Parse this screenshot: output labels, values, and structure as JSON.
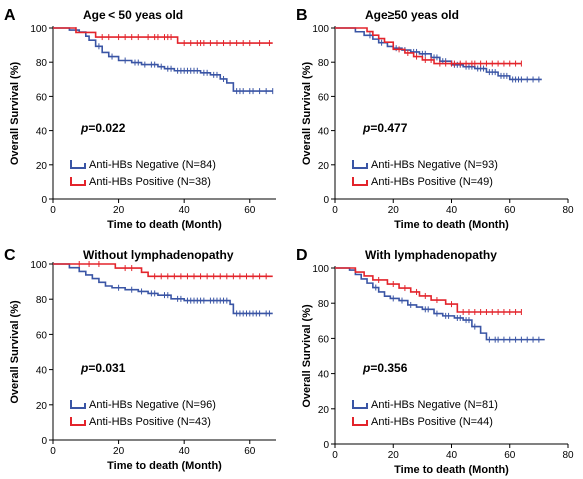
{
  "chart_data": [
    {
      "type": "line",
      "panel_letter": "A",
      "title": "Age < 50 yeas old",
      "xlabel": "Time to death (Month)",
      "ylabel": "Overall Survival (%)",
      "xlim": [
        0,
        68
      ],
      "ylim": [
        0,
        100
      ],
      "x_ticks": [
        0,
        20,
        40,
        60
      ],
      "y_ticks": [
        0,
        20,
        40,
        60,
        80,
        100
      ],
      "p_label": "p",
      "p_value": "=0.022",
      "series": [
        {
          "name": "Anti-HBs Negative (N=84)",
          "color": "#3a55a5",
          "points": [
            [
              0,
              100
            ],
            [
              4,
              100
            ],
            [
              5,
              98.8
            ],
            [
              8,
              97.6
            ],
            [
              10,
              95.2
            ],
            [
              11,
              92.9
            ],
            [
              13,
              89.3
            ],
            [
              15,
              85.7
            ],
            [
              17,
              83.3
            ],
            [
              20,
              81
            ],
            [
              24,
              79.8
            ],
            [
              27,
              78.6
            ],
            [
              32,
              77.4
            ],
            [
              34,
              76.2
            ],
            [
              37,
              75
            ],
            [
              45,
              73.8
            ],
            [
              48,
              72.6
            ],
            [
              51,
              70.2
            ],
            [
              53,
              67.9
            ],
            [
              55,
              63.1
            ],
            [
              67,
              63.1
            ]
          ],
          "censored": [
            7,
            14,
            18,
            22,
            25,
            26,
            28,
            30,
            31,
            33,
            35,
            36,
            38,
            39,
            40,
            41,
            42,
            43,
            44,
            46,
            47,
            49,
            50,
            52,
            56,
            57,
            58,
            60,
            61,
            63,
            65,
            67
          ]
        },
        {
          "name": "Anti-HBs Positive (N=38)",
          "color": "#e3242b",
          "points": [
            [
              0,
              100
            ],
            [
              6,
              100
            ],
            [
              7,
              97.4
            ],
            [
              12,
              97.4
            ],
            [
              13,
              94.7
            ],
            [
              27,
              94.7
            ],
            [
              28,
              94.7
            ],
            [
              37,
              94.7
            ],
            [
              38,
              91.2
            ],
            [
              67,
              91.2
            ]
          ],
          "censored": [
            15,
            17,
            20,
            22,
            24,
            26,
            29,
            31,
            32,
            34,
            35,
            36,
            40,
            42,
            44,
            45,
            46,
            48,
            50,
            52,
            54,
            56,
            58,
            60,
            63,
            66
          ]
        }
      ]
    },
    {
      "type": "line",
      "panel_letter": "B",
      "title": "Age≥50 yeas old",
      "xlabel": "Time to death (Month)",
      "ylabel": "Overall Survival (%)",
      "xlim": [
        0,
        80
      ],
      "ylim": [
        0,
        100
      ],
      "x_ticks": [
        0,
        20,
        40,
        60,
        80
      ],
      "y_ticks": [
        0,
        20,
        40,
        60,
        80,
        100
      ],
      "p_label": "p",
      "p_value": "=0.477",
      "series": [
        {
          "name": "Anti-HBs Negative (N=93)",
          "color": "#3a55a5",
          "points": [
            [
              0,
              100
            ],
            [
              6,
              100
            ],
            [
              7,
              97.8
            ],
            [
              10,
              95.7
            ],
            [
              13,
              93.5
            ],
            [
              15,
              91.4
            ],
            [
              18,
              89.2
            ],
            [
              20,
              88.2
            ],
            [
              23,
              87.1
            ],
            [
              26,
              86
            ],
            [
              29,
              84.9
            ],
            [
              33,
              82.8
            ],
            [
              36,
              80.6
            ],
            [
              40,
              78.5
            ],
            [
              44,
              77.4
            ],
            [
              48,
              76.3
            ],
            [
              52,
              74.2
            ],
            [
              56,
              72
            ],
            [
              60,
              69.9
            ],
            [
              71,
              69.9
            ]
          ],
          "censored": [
            12,
            16,
            21,
            24,
            27,
            28,
            30,
            31,
            34,
            35,
            37,
            38,
            41,
            42,
            43,
            45,
            46,
            47,
            49,
            50,
            51,
            53,
            54,
            55,
            57,
            58,
            59,
            61,
            62,
            63,
            64,
            66,
            68,
            70
          ]
        },
        {
          "name": "Anti-HBs Positive (N=49)",
          "color": "#e3242b",
          "points": [
            [
              0,
              100
            ],
            [
              10,
              100
            ],
            [
              11,
              97.9
            ],
            [
              13,
              95.8
            ],
            [
              15,
              93.8
            ],
            [
              17,
              91.7
            ],
            [
              20,
              87.5
            ],
            [
              24,
              85.4
            ],
            [
              27,
              83.3
            ],
            [
              30,
              81.3
            ],
            [
              34,
              79.2
            ],
            [
              64,
              79.2
            ]
          ],
          "censored": [
            22,
            25,
            28,
            31,
            33,
            36,
            38,
            40,
            41,
            43,
            45,
            47,
            48,
            50,
            52,
            54,
            56,
            58,
            60,
            62,
            64
          ]
        }
      ]
    },
    {
      "type": "line",
      "panel_letter": "C",
      "title": "Without lymphadenopathy",
      "xlabel": "Time to death (Month)",
      "ylabel": "Overall Survival (%)",
      "xlim": [
        0,
        68
      ],
      "ylim": [
        0,
        100
      ],
      "x_ticks": [
        0,
        20,
        40,
        60
      ],
      "y_ticks": [
        0,
        20,
        40,
        60,
        80,
        100
      ],
      "p_label": "p",
      "p_value": "=0.031",
      "series": [
        {
          "name": "Anti-HBs Negative (N=96)",
          "color": "#3a55a5",
          "points": [
            [
              0,
              100
            ],
            [
              5,
              97.9
            ],
            [
              8,
              95.8
            ],
            [
              10,
              93.8
            ],
            [
              12,
              91.7
            ],
            [
              14,
              89.6
            ],
            [
              16,
              87.5
            ],
            [
              18,
              86.5
            ],
            [
              22,
              85.4
            ],
            [
              26,
              84.4
            ],
            [
              29,
              83.3
            ],
            [
              32,
              82.3
            ],
            [
              36,
              80.2
            ],
            [
              40,
              79.2
            ],
            [
              47,
              79.2
            ],
            [
              54,
              77.1
            ],
            [
              55,
              71.9
            ],
            [
              67,
              71.9
            ]
          ],
          "censored": [
            20,
            24,
            27,
            30,
            31,
            34,
            35,
            38,
            39,
            41,
            42,
            43,
            44,
            45,
            46,
            48,
            49,
            50,
            51,
            52,
            53,
            56,
            57,
            58,
            59,
            60,
            61,
            62,
            63,
            65,
            66
          ]
        },
        {
          "name": "Anti-HBs Positive (N=43)",
          "color": "#e3242b",
          "points": [
            [
              0,
              100
            ],
            [
              18,
              100
            ],
            [
              19,
              97.7
            ],
            [
              26,
              97.7
            ],
            [
              27,
              95.3
            ],
            [
              29,
              93
            ],
            [
              67,
              93
            ]
          ],
          "censored": [
            8,
            11,
            14,
            22,
            24,
            31,
            33,
            35,
            37,
            39,
            41,
            43,
            45,
            47,
            49,
            51,
            53,
            55,
            57,
            59,
            61,
            63,
            65
          ]
        }
      ]
    },
    {
      "type": "line",
      "panel_letter": "D",
      "title": "With lymphadenopathy",
      "xlabel": "Time to death (Month)",
      "ylabel": "Overall Survival (%)",
      "xlim": [
        0,
        80
      ],
      "ylim": [
        0,
        100
      ],
      "x_ticks": [
        0,
        20,
        40,
        60,
        80
      ],
      "y_ticks": [
        0,
        20,
        40,
        60,
        80,
        100
      ],
      "p_label": "p",
      "p_value": "=0.356",
      "series": [
        {
          "name": "Anti-HBs Negative (N=81)",
          "color": "#3a55a5",
          "points": [
            [
              0,
              100
            ],
            [
              5,
              98.8
            ],
            [
              7,
              96.3
            ],
            [
              9,
              93.8
            ],
            [
              11,
              91.4
            ],
            [
              13,
              88.9
            ],
            [
              15,
              86.4
            ],
            [
              17,
              84
            ],
            [
              19,
              82.7
            ],
            [
              22,
              81.5
            ],
            [
              25,
              79
            ],
            [
              28,
              77.8
            ],
            [
              30,
              76.5
            ],
            [
              34,
              74.1
            ],
            [
              37,
              72.8
            ],
            [
              41,
              71.6
            ],
            [
              44,
              70.4
            ],
            [
              47,
              66.7
            ],
            [
              50,
              63
            ],
            [
              52,
              59.3
            ],
            [
              72,
              59.3
            ]
          ],
          "censored": [
            14,
            20,
            23,
            26,
            31,
            32,
            35,
            38,
            39,
            42,
            43,
            45,
            46,
            48,
            53,
            55,
            56,
            58,
            60,
            62,
            64,
            66,
            68,
            70
          ]
        },
        {
          "name": "Anti-HBs Positive (N=44)",
          "color": "#e3242b",
          "points": [
            [
              0,
              100
            ],
            [
              6,
              100
            ],
            [
              7,
              97.7
            ],
            [
              10,
              95.5
            ],
            [
              13,
              93.2
            ],
            [
              18,
              90.9
            ],
            [
              22,
              88.6
            ],
            [
              26,
              86.4
            ],
            [
              29,
              84.1
            ],
            [
              33,
              81.8
            ],
            [
              38,
              79.5
            ],
            [
              42,
              75
            ],
            [
              64,
              75
            ]
          ],
          "censored": [
            15,
            20,
            24,
            28,
            31,
            35,
            40,
            44,
            46,
            48,
            50,
            52,
            54,
            56,
            58,
            60,
            62,
            64
          ]
        }
      ]
    }
  ]
}
